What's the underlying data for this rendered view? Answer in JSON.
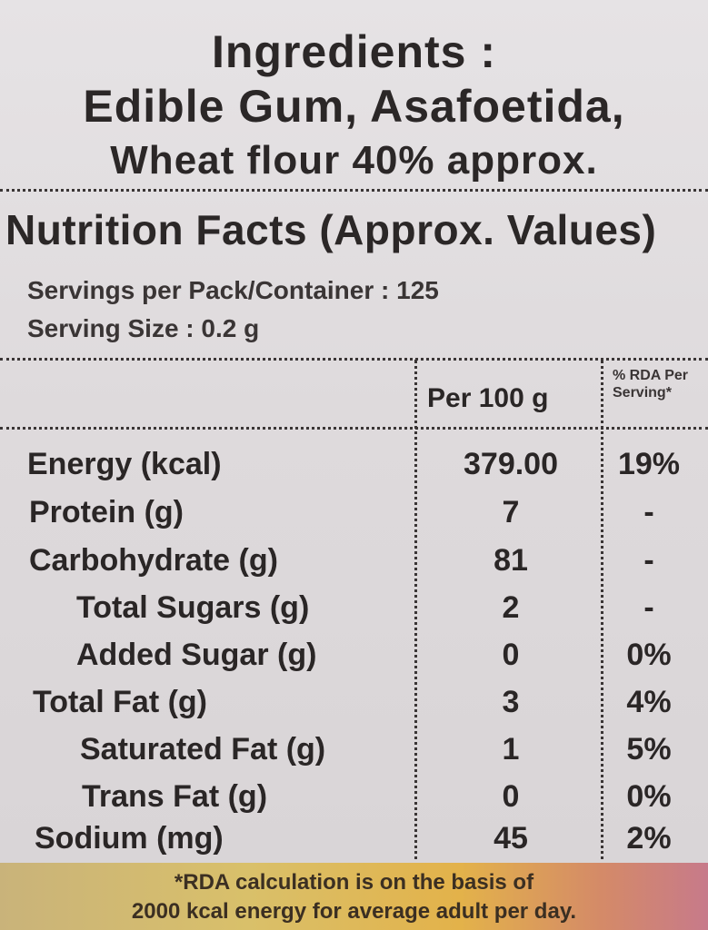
{
  "ingredients": {
    "title": "Ingredients :",
    "line1": "Edible Gum, Asafoetida,",
    "line2": "Wheat flour 40% approx."
  },
  "nutrition": {
    "title": "Nutrition Facts (Approx. Values)",
    "servings_per_pack": "Servings per Pack/Container : 125",
    "serving_size": "Serving Size  : 0.2 g",
    "col_per100": "Per 100 g",
    "col_rda_line1": "% RDA Per",
    "col_rda_line2": "Serving*",
    "rows": [
      {
        "name": "Energy (kcal)",
        "value": "379.00",
        "rda": "19%"
      },
      {
        "name": "Protein (g)",
        "value": "7",
        "rda": "-"
      },
      {
        "name": "Carbohydrate (g)",
        "value": "81",
        "rda": "-"
      },
      {
        "name": "Total Sugars (g)",
        "value": "2",
        "rda": "-"
      },
      {
        "name": "Added Sugar (g)",
        "value": "0",
        "rda": "0%"
      },
      {
        "name": "Total Fat (g)",
        "value": "3",
        "rda": "4%"
      },
      {
        "name": "Saturated Fat (g)",
        "value": "1",
        "rda": "5%"
      },
      {
        "name": "Trans Fat (g)",
        "value": "0",
        "rda": "0%"
      },
      {
        "name": "Sodium (mg)",
        "value": "45",
        "rda": "2%"
      }
    ]
  },
  "footer": {
    "line1": "*RDA calculation is on the basis of",
    "line2": "2000 kcal energy for average adult per day."
  }
}
